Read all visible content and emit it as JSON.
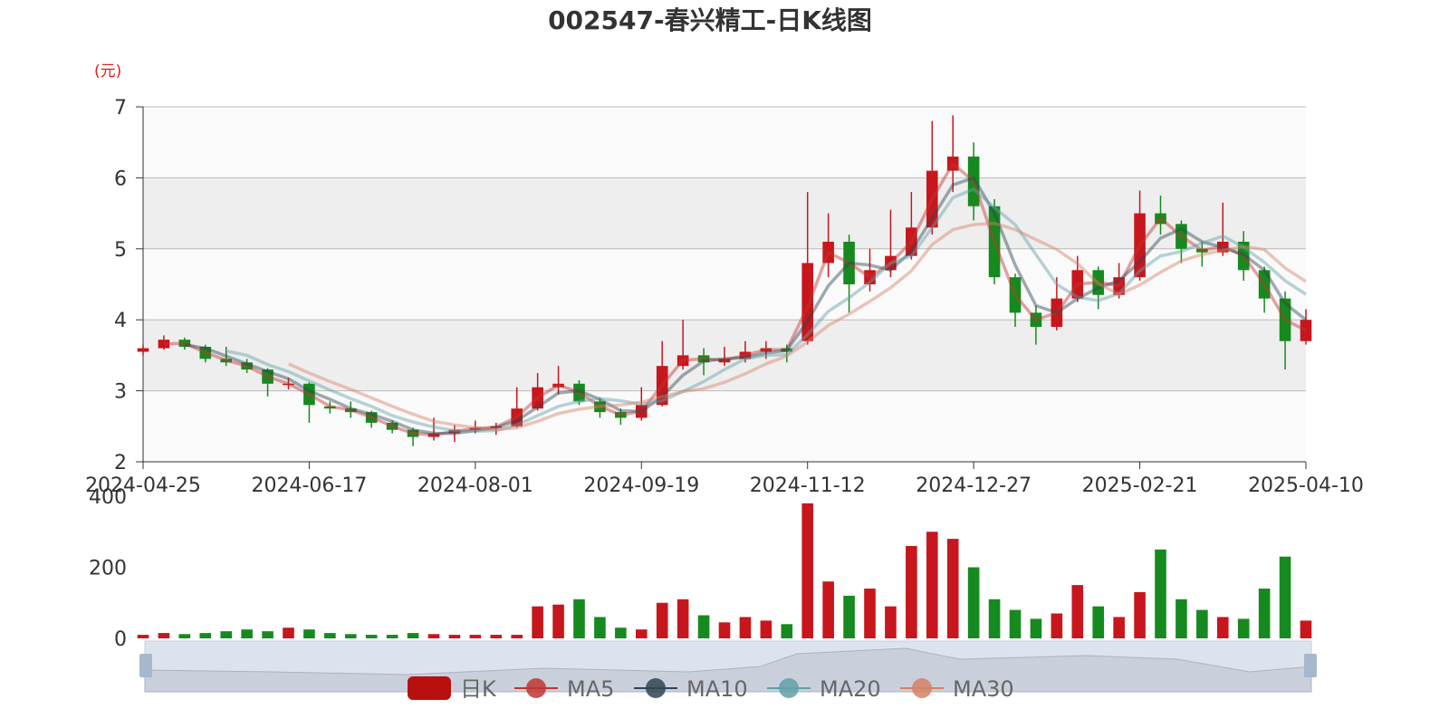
{
  "chart_data": {
    "type": "candlestick",
    "title": "002547-春兴精工-日K线图",
    "unit_label": "(元)",
    "categories": [
      "2024-04-25",
      null,
      null,
      null,
      null,
      null,
      null,
      null,
      "2024-06-17",
      null,
      null,
      null,
      null,
      null,
      null,
      null,
      "2024-08-01",
      null,
      null,
      null,
      null,
      null,
      null,
      null,
      "2024-09-19",
      null,
      null,
      null,
      null,
      null,
      null,
      null,
      "2024-11-12",
      null,
      null,
      null,
      null,
      null,
      null,
      null,
      "2024-12-27",
      null,
      null,
      null,
      null,
      null,
      null,
      null,
      "2025-02-21",
      null,
      null,
      null,
      null,
      null,
      null,
      null,
      "2025-04-10"
    ],
    "candle_name": "日K",
    "candle_color": "#b80f0f",
    "up_color": "#c8161d",
    "down_color": "#168a1e",
    "ohlc": [
      [
        3.55,
        3.6,
        3.5,
        3.65
      ],
      [
        3.6,
        3.72,
        3.58,
        3.78
      ],
      [
        3.72,
        3.62,
        3.58,
        3.75
      ],
      [
        3.62,
        3.45,
        3.4,
        3.65
      ],
      [
        3.45,
        3.4,
        3.35,
        3.62
      ],
      [
        3.4,
        3.3,
        3.25,
        3.45
      ],
      [
        3.3,
        3.1,
        2.92,
        3.32
      ],
      [
        3.08,
        3.1,
        3.02,
        3.18
      ],
      [
        3.1,
        2.8,
        2.55,
        3.12
      ],
      [
        2.78,
        2.75,
        2.68,
        2.85
      ],
      [
        2.75,
        2.7,
        2.62,
        2.85
      ],
      [
        2.7,
        2.55,
        2.48,
        2.72
      ],
      [
        2.55,
        2.45,
        2.4,
        2.58
      ],
      [
        2.45,
        2.35,
        2.22,
        2.48
      ],
      [
        2.35,
        2.4,
        2.3,
        2.62
      ],
      [
        2.4,
        2.45,
        2.28,
        2.52
      ],
      [
        2.45,
        2.48,
        2.4,
        2.58
      ],
      [
        2.48,
        2.5,
        2.38,
        2.55
      ],
      [
        2.5,
        2.75,
        2.48,
        3.05
      ],
      [
        2.75,
        3.05,
        2.72,
        3.25
      ],
      [
        3.05,
        3.1,
        2.95,
        3.35
      ],
      [
        3.1,
        2.85,
        2.8,
        3.15
      ],
      [
        2.85,
        2.7,
        2.62,
        2.9
      ],
      [
        2.7,
        2.62,
        2.52,
        2.75
      ],
      [
        2.62,
        2.8,
        2.58,
        3.05
      ],
      [
        2.8,
        3.35,
        2.78,
        3.7
      ],
      [
        3.35,
        3.5,
        3.3,
        4.0
      ],
      [
        3.5,
        3.4,
        3.22,
        3.6
      ],
      [
        3.4,
        3.45,
        3.35,
        3.62
      ],
      [
        3.45,
        3.55,
        3.4,
        3.7
      ],
      [
        3.55,
        3.6,
        3.45,
        3.7
      ],
      [
        3.6,
        3.55,
        3.4,
        3.65
      ],
      [
        3.7,
        4.8,
        3.65,
        5.8
      ],
      [
        4.8,
        5.1,
        4.6,
        5.5
      ],
      [
        5.1,
        4.5,
        4.1,
        5.2
      ],
      [
        4.5,
        4.7,
        4.4,
        5.0
      ],
      [
        4.7,
        4.9,
        4.6,
        5.55
      ],
      [
        4.9,
        5.3,
        4.85,
        5.8
      ],
      [
        5.3,
        6.1,
        5.2,
        6.8
      ],
      [
        6.1,
        6.3,
        5.8,
        6.88
      ],
      [
        6.3,
        5.6,
        5.4,
        6.5
      ],
      [
        5.6,
        4.6,
        4.5,
        5.7
      ],
      [
        4.6,
        4.1,
        3.9,
        4.65
      ],
      [
        4.1,
        3.9,
        3.65,
        4.2
      ],
      [
        3.9,
        4.3,
        3.85,
        4.6
      ],
      [
        4.3,
        4.7,
        4.25,
        4.9
      ],
      [
        4.7,
        4.35,
        4.15,
        4.75
      ],
      [
        4.35,
        4.6,
        4.3,
        4.8
      ],
      [
        4.6,
        5.5,
        4.55,
        5.82
      ],
      [
        5.5,
        5.35,
        5.2,
        5.75
      ],
      [
        5.35,
        5.0,
        4.8,
        5.4
      ],
      [
        5.0,
        4.95,
        4.75,
        5.1
      ],
      [
        4.95,
        5.1,
        4.9,
        5.65
      ],
      [
        5.1,
        4.7,
        4.55,
        5.25
      ],
      [
        4.7,
        4.3,
        4.1,
        4.75
      ],
      [
        4.3,
        3.7,
        3.3,
        4.4
      ],
      [
        3.7,
        4.0,
        3.65,
        4.15
      ]
    ],
    "series": [
      {
        "name": "MA5",
        "color": "#c23531",
        "values": [
          null,
          3.66,
          3.67,
          3.54,
          3.43,
          3.35,
          3.2,
          3.1,
          2.95,
          2.78,
          2.73,
          2.63,
          2.5,
          2.4,
          2.38,
          2.43,
          2.47,
          2.49,
          2.63,
          2.9,
          3.08,
          2.98,
          2.78,
          2.66,
          2.71,
          3.08,
          3.43,
          3.45,
          3.43,
          3.5,
          3.58,
          3.58,
          4.18,
          4.95,
          4.8,
          4.6,
          4.8,
          5.1,
          5.7,
          6.2,
          5.95,
          5.1,
          4.35,
          4.0,
          4.1,
          4.5,
          4.53,
          4.48,
          5.05,
          5.43,
          5.18,
          4.98,
          5.03,
          4.9,
          4.5,
          4.0,
          3.85
        ]
      },
      {
        "name": "MA10",
        "color": "#2f4554",
        "values": [
          null,
          null,
          3.65,
          3.6,
          3.49,
          3.38,
          3.27,
          3.17,
          3.0,
          2.88,
          2.75,
          2.67,
          2.57,
          2.45,
          2.4,
          2.4,
          2.44,
          2.48,
          2.58,
          2.77,
          2.97,
          3.0,
          2.88,
          2.72,
          2.71,
          2.92,
          3.22,
          3.42,
          3.45,
          3.47,
          3.53,
          3.57,
          3.98,
          4.48,
          4.8,
          4.77,
          4.7,
          4.97,
          5.43,
          5.9,
          6.0,
          5.5,
          4.77,
          4.2,
          4.1,
          4.3,
          4.45,
          4.55,
          4.82,
          5.15,
          5.28,
          5.1,
          5.02,
          4.92,
          4.7,
          4.23,
          4.0
        ]
      },
      {
        "name": "MA20",
        "color": "#61a0a8",
        "values": [
          null,
          null,
          null,
          null,
          3.56,
          3.5,
          3.37,
          3.27,
          3.14,
          3.01,
          2.89,
          2.78,
          2.65,
          2.56,
          2.49,
          2.44,
          2.43,
          2.44,
          2.52,
          2.65,
          2.78,
          2.85,
          2.89,
          2.86,
          2.81,
          2.86,
          2.99,
          3.13,
          3.3,
          3.45,
          3.5,
          3.51,
          3.79,
          4.12,
          4.31,
          4.53,
          4.8,
          4.9,
          5.3,
          5.72,
          5.84,
          5.58,
          5.34,
          4.92,
          4.5,
          4.32,
          4.27,
          4.37,
          4.69,
          4.9,
          4.96,
          5.08,
          5.18,
          5.02,
          4.81,
          4.55,
          4.36
        ]
      },
      {
        "name": "MA30",
        "color": "#d48265",
        "values": [
          null,
          null,
          null,
          null,
          null,
          null,
          null,
          3.38,
          3.25,
          3.13,
          3.02,
          2.9,
          2.78,
          2.67,
          2.57,
          2.52,
          2.48,
          2.45,
          2.48,
          2.57,
          2.68,
          2.74,
          2.78,
          2.8,
          2.84,
          2.92,
          2.99,
          3.03,
          3.12,
          3.24,
          3.38,
          3.49,
          3.69,
          3.92,
          4.08,
          4.26,
          4.45,
          4.69,
          5.06,
          5.27,
          5.34,
          5.36,
          5.27,
          5.13,
          4.99,
          4.79,
          4.51,
          4.36,
          4.49,
          4.67,
          4.83,
          4.92,
          4.98,
          5.03,
          4.99,
          4.73,
          4.54
        ]
      }
    ],
    "ylim": [
      2,
      7
    ],
    "yticks": [
      2,
      3,
      4,
      5,
      6,
      7
    ],
    "volume": {
      "values": [
        10,
        15,
        12,
        15,
        20,
        25,
        20,
        30,
        25,
        15,
        12,
        10,
        10,
        15,
        12,
        10,
        10,
        10,
        10,
        90,
        95,
        110,
        60,
        30,
        25,
        100,
        110,
        65,
        45,
        60,
        50,
        40,
        380,
        160,
        120,
        140,
        90,
        260,
        300,
        280,
        200,
        110,
        80,
        55,
        70,
        150,
        90,
        60,
        130,
        250,
        110,
        80,
        60,
        55,
        140,
        230,
        50
      ],
      "ylim": [
        0,
        400
      ],
      "yticks": [
        0,
        200,
        400
      ]
    }
  }
}
